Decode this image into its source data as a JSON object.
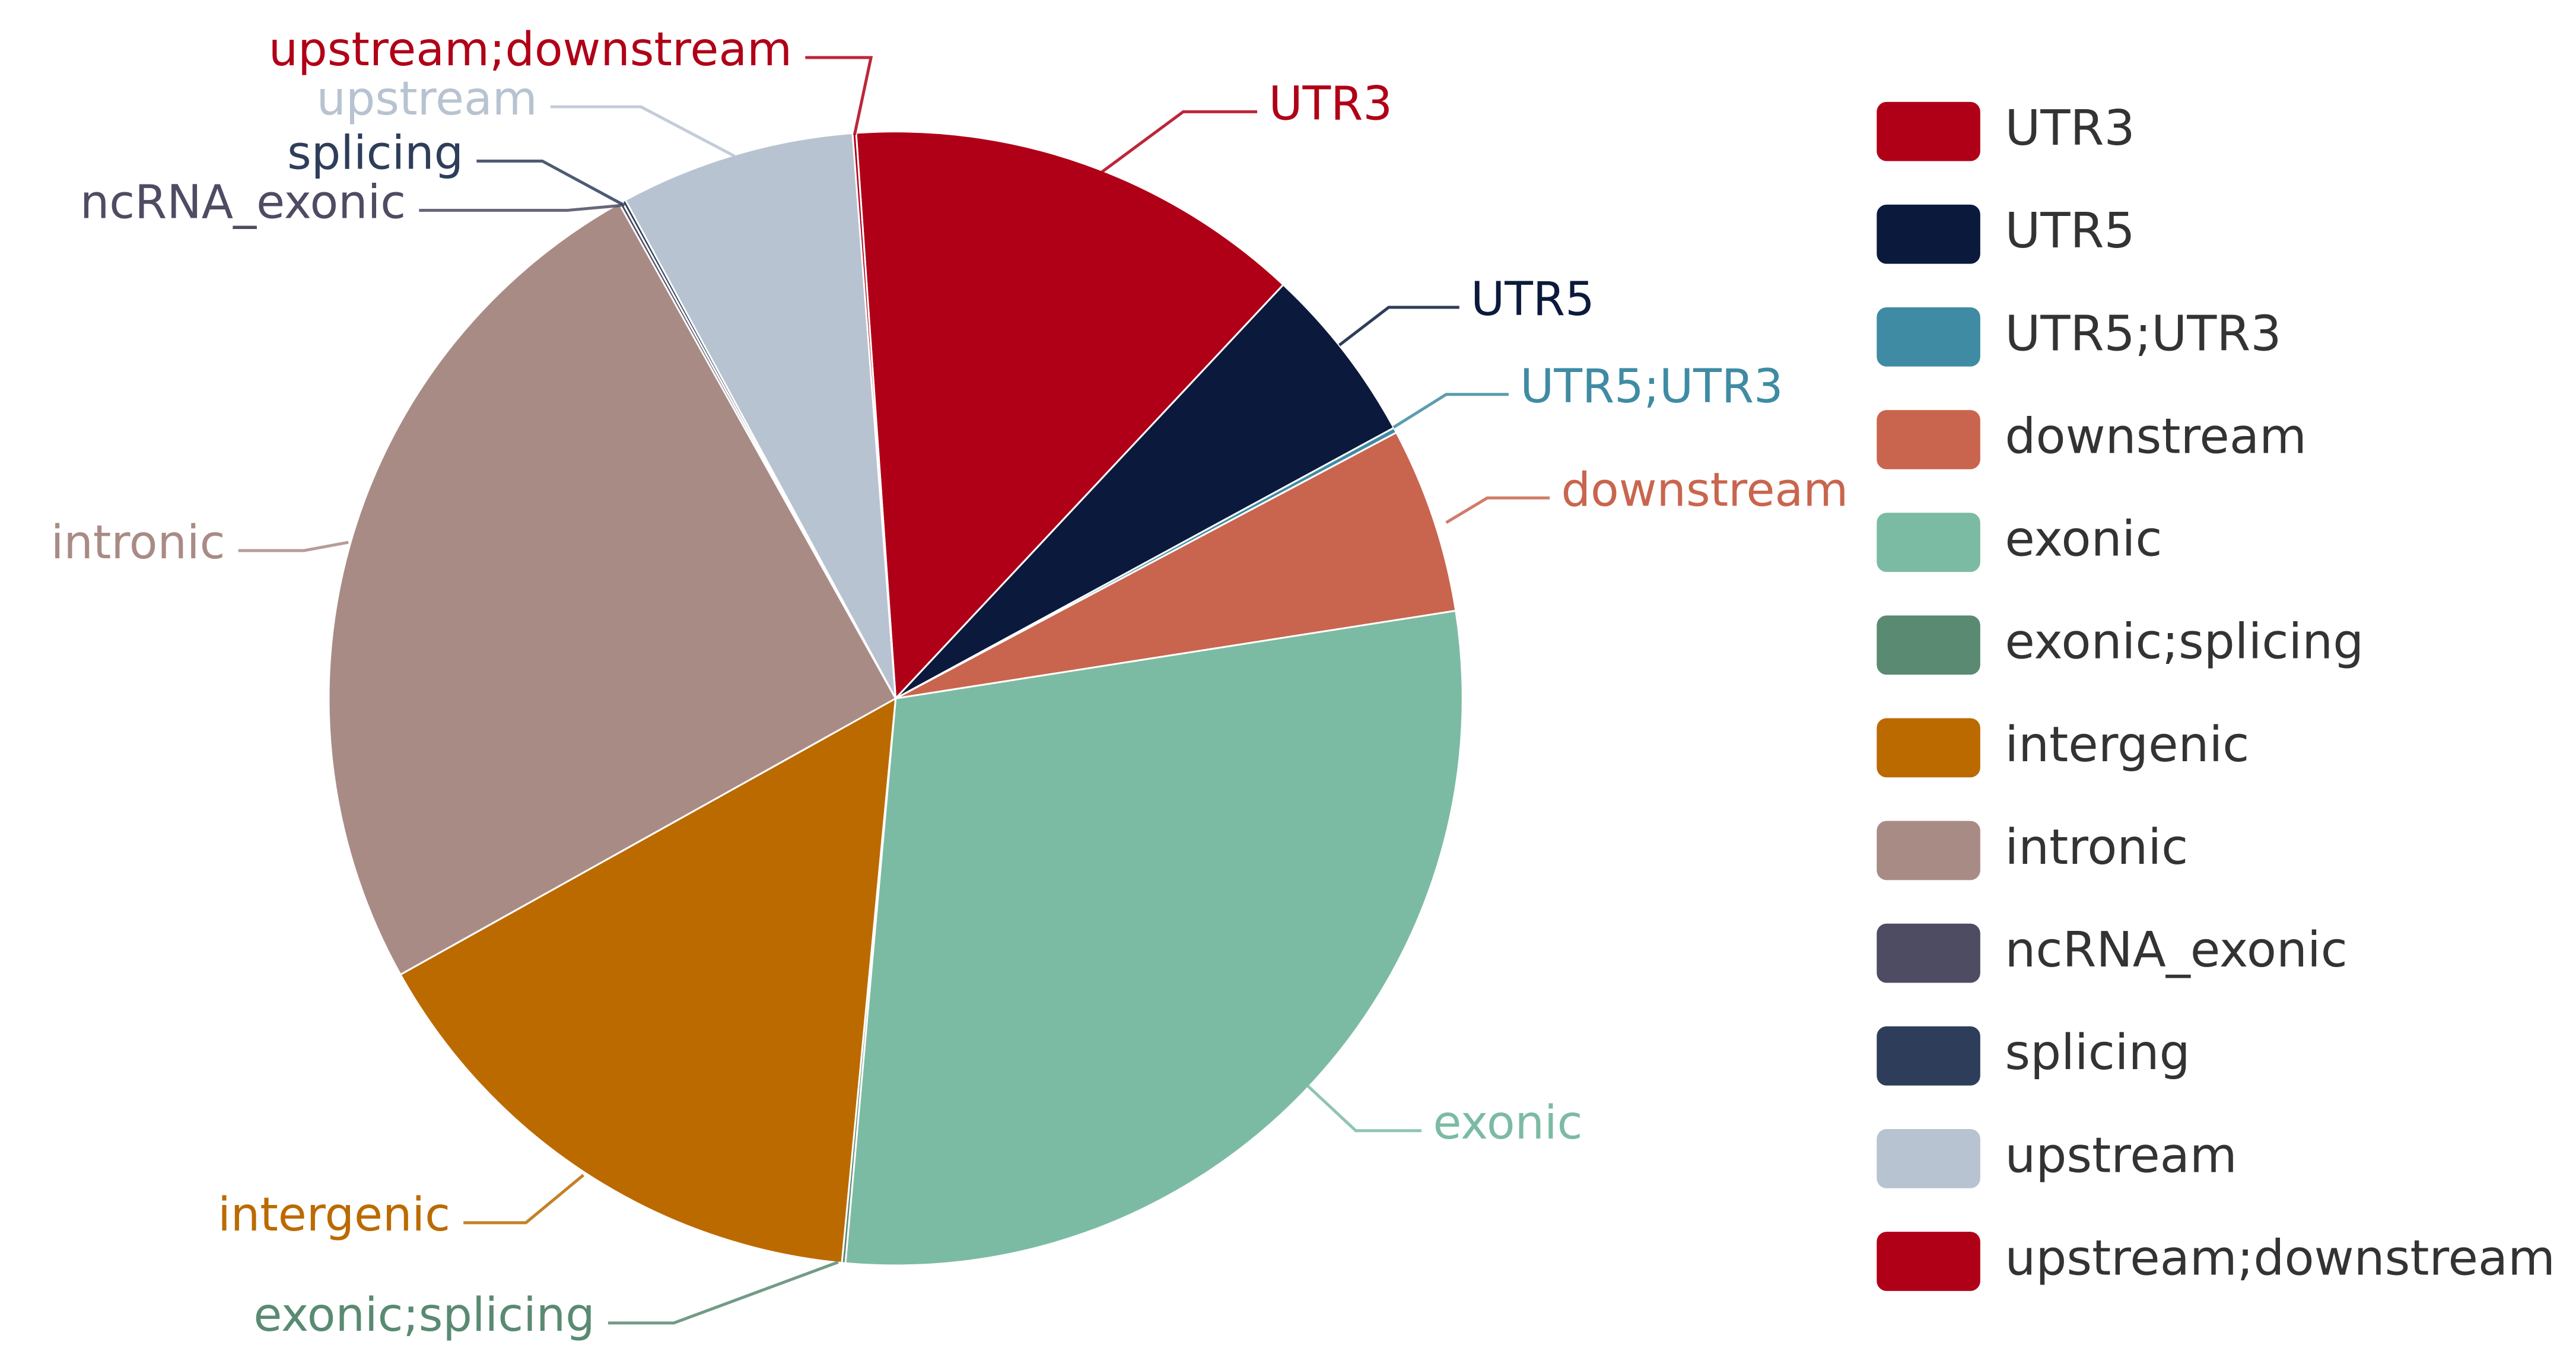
{
  "chart_data": {
    "type": "pie",
    "categories": [
      "UTR3",
      "UTR5",
      "UTR5;UTR3",
      "downstream",
      "exonic",
      "exonic;splicing",
      "intergenic",
      "intronic",
      "ncRNA_exonic",
      "splicing",
      "upstream",
      "upstream;downstream"
    ],
    "values": [
      13.1,
      5.1,
      0.15,
      5.3,
      28.9,
      0.1,
      15.4,
      25,
      0.1,
      0.1,
      6.7,
      0.1
    ],
    "colors": [
      "#b00017",
      "#0b1a3c",
      "#3f8ba3",
      "#c9654e",
      "#7cbba3",
      "#5a8a72",
      "#bb6a00",
      "#a98b85",
      "#4e4c63",
      "#2e3e5a",
      "#b8c3d1",
      "#b00017"
    ],
    "legend": "right"
  }
}
